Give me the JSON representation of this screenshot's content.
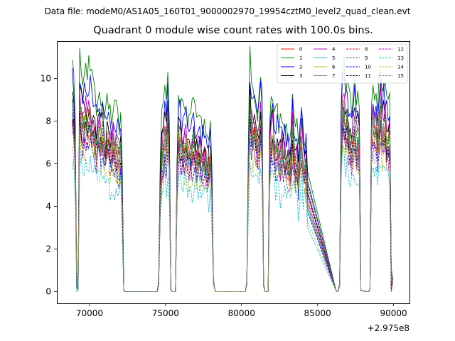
{
  "chart_data": {
    "type": "line",
    "suptitle": "Data file: modeM0/AS1A05_160T01_9000002970_19954cztM0_level2_quad_clean.evt",
    "title": "Quadrant 0 module wise count rates with 100.0s bins.",
    "xlabel": "",
    "ylabel": "",
    "x_offset_label": "+2.975e8",
    "xlim": [
      67850,
      91050
    ],
    "ylim": [
      -0.55,
      11.75
    ],
    "xticks": [
      70000,
      75000,
      80000,
      85000,
      90000
    ],
    "xtick_labels": [
      "70000",
      "75000",
      "80000",
      "85000",
      "90000"
    ],
    "yticks": [
      0,
      2,
      4,
      6,
      8,
      10
    ],
    "ytick_labels": [
      "0",
      "2",
      "4",
      "6",
      "8",
      "10"
    ],
    "legend_position": "top-right",
    "legend_ncol": 4,
    "profile": {
      "x": [
        68850,
        68950,
        69050,
        69150,
        69250,
        69350,
        69450,
        69550,
        69650,
        69750,
        69850,
        69950,
        70050,
        70150,
        70250,
        70350,
        70450,
        70550,
        70650,
        70750,
        70850,
        70950,
        71050,
        71150,
        71250,
        71350,
        71450,
        71550,
        71650,
        71750,
        71850,
        71950,
        72050,
        72150,
        72250,
        72350,
        72450,
        72550,
        74450,
        74550,
        74650,
        74750,
        74850,
        74950,
        75050,
        75150,
        75250,
        75350,
        75450,
        75550,
        75650,
        75750,
        75850,
        75950,
        76050,
        76150,
        76250,
        76350,
        76450,
        76550,
        76650,
        76750,
        76850,
        76950,
        77050,
        77150,
        77250,
        77350,
        77450,
        77550,
        77650,
        77750,
        77850,
        77950,
        78050,
        78150,
        78250,
        78350,
        80250,
        80350,
        80450,
        80550,
        80650,
        80750,
        80850,
        80950,
        81050,
        81150,
        81250,
        81350,
        81450,
        81550,
        81650,
        81750,
        81850,
        81950,
        82050,
        82150,
        82250,
        82350,
        82450,
        82550,
        82650,
        82750,
        82850,
        82950,
        83050,
        83150,
        83250,
        83350,
        83450,
        83550,
        83650,
        83750,
        83850,
        83950,
        84050,
        84150,
        84250,
        84350,
        86150,
        86250,
        86350,
        86450,
        86550,
        86650,
        86750,
        86850,
        86950,
        87050,
        87150,
        87250,
        87350,
        87450,
        87550,
        87650,
        87750,
        87850,
        88250,
        88350,
        88450,
        88550,
        88650,
        88750,
        88850,
        88950,
        89050,
        89150,
        89250,
        89350,
        89450,
        89550,
        89650,
        89750,
        89850,
        89950
      ],
      "level": [
        8.9,
        8.4,
        6.8,
        0.6,
        0.1,
        8.8,
        8.4,
        8.1,
        8.2,
        8.3,
        8.0,
        8.5,
        8.3,
        7.9,
        7.8,
        7.5,
        7.1,
        7.5,
        7.7,
        7.4,
        7.5,
        7.0,
        6.6,
        7.4,
        7.2,
        6.9,
        6.7,
        7.2,
        6.8,
        6.9,
        6.6,
        6.3,
        6.9,
        4.5,
        0.05,
        0.0,
        0.0,
        0.0,
        0.0,
        0.4,
        4.7,
        6.5,
        6.9,
        7.5,
        7.0,
        8.4,
        6.3,
        0.1,
        0.0,
        0.0,
        0.0,
        5.0,
        7.5,
        7.3,
        6.9,
        6.8,
        6.8,
        7.2,
        6.7,
        6.4,
        6.5,
        6.8,
        7.0,
        6.7,
        6.4,
        6.6,
        6.7,
        6.2,
        6.3,
        6.5,
        6.2,
        5.9,
        6.0,
        6.4,
        4.7,
        0.5,
        0.05,
        0.0,
        0.0,
        0.4,
        6.0,
        8.9,
        8.0,
        7.6,
        7.7,
        7.4,
        6.9,
        7.3,
        8.1,
        7.2,
        0.3,
        0.0,
        0.0,
        0.0,
        6.4,
        7.3,
        7.7,
        6.9,
        6.7,
        6.9,
        6.5,
        6.3,
        6.8,
        6.5,
        6.4,
        6.2,
        6.1,
        5.9,
        6.0,
        7.6,
        6.8,
        6.2,
        6.4,
        5.3,
        6.8,
        7.4,
        6.2,
        5.9,
        6.0,
        4.7,
        0.2,
        0.0,
        0.0,
        0.3,
        6.9,
        8.8,
        8.5,
        7.8,
        8.2,
        7.4,
        7.1,
        6.9,
        7.6,
        8.0,
        7.2,
        7.4,
        6.9,
        0.05,
        0.0,
        0.0,
        0.1,
        7.6,
        8.2,
        7.5,
        7.9,
        7.0,
        8.0,
        8.8,
        7.6,
        8.1,
        8.0,
        7.3,
        7.1,
        7.4,
        0.6,
        0.5
      ]
    },
    "series": [
      {
        "name": "0",
        "color": "#ff0000",
        "dash": "solid",
        "scale": 0.96
      },
      {
        "name": "1",
        "color": "#008000",
        "dash": "solid",
        "scale": 1.24
      },
      {
        "name": "2",
        "color": "#0000ff",
        "dash": "solid",
        "scale": 1.15
      },
      {
        "name": "3",
        "color": "#000000",
        "dash": "solid",
        "scale": 1.05
      },
      {
        "name": "4",
        "color": "#bf00bf",
        "dash": "solid",
        "scale": 1.03
      },
      {
        "name": "5",
        "color": "#17becf",
        "dash": "solid",
        "scale": 0.91
      },
      {
        "name": "6",
        "color": "#bcbd22",
        "dash": "solid",
        "scale": 0.93
      },
      {
        "name": "7",
        "color": "#7f7f7f",
        "dash": "solid",
        "scale": 0.97
      },
      {
        "name": "8",
        "color": "#ff0000",
        "dash": "dashed",
        "scale": 0.92
      },
      {
        "name": "9",
        "color": "#008000",
        "dash": "dashed",
        "scale": 0.99
      },
      {
        "name": "10",
        "color": "#0000ff",
        "dash": "dashed",
        "scale": 0.85
      },
      {
        "name": "11",
        "color": "#000000",
        "dash": "dashed",
        "scale": 0.89
      },
      {
        "name": "12",
        "color": "#bf00bf",
        "dash": "dashed",
        "scale": 0.87
      },
      {
        "name": "13",
        "color": "#17becf",
        "dash": "dashed",
        "scale": 0.71
      },
      {
        "name": "14",
        "color": "#bcbd22",
        "dash": "dashed",
        "scale": 0.82
      },
      {
        "name": "15",
        "color": "#7f7f7f",
        "dash": "dashed",
        "scale": 0.94
      }
    ]
  }
}
